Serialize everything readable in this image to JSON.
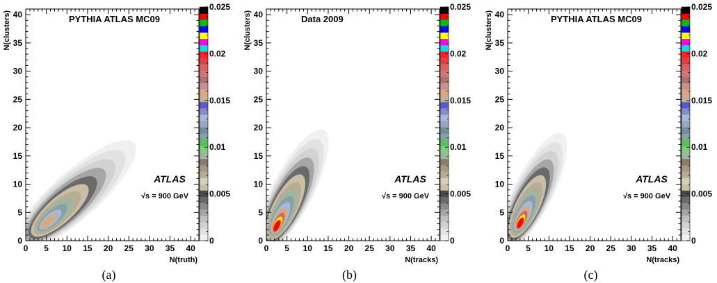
{
  "chart_data": [
    {
      "type": "heatmap",
      "panel_label": "(a)",
      "title": "PYTHIA ATLAS MC09",
      "xlabel": "N(truth)",
      "ylabel": "N(clusters)",
      "xlim": [
        0,
        42
      ],
      "ylim": [
        0,
        41
      ],
      "x_ticks": [
        0,
        5,
        10,
        15,
        20,
        25,
        30,
        35,
        40
      ],
      "y_ticks": [
        0,
        5,
        10,
        15,
        20,
        25,
        30,
        35,
        40
      ],
      "annotation": {
        "experiment": "ATLAS",
        "energy": "√s = 900 GeV"
      },
      "colorbar": {
        "range": [
          0,
          0.025
        ],
        "ticks": [
          0,
          0.005,
          0.01,
          0.015,
          0.02,
          0.025
        ]
      },
      "peak": {
        "x": 5,
        "y": 3,
        "value": 0.0165
      },
      "ridge": {
        "start": [
          1.5,
          1.5
        ],
        "end": [
          30,
          20
        ]
      },
      "contour_levels": [
        0.0003,
        0.0008,
        0.0015,
        0.0025,
        0.004,
        0.0055,
        0.007,
        0.009,
        0.011,
        0.013,
        0.015,
        0.016
      ]
    },
    {
      "type": "heatmap",
      "panel_label": "(b)",
      "title": "Data 2009",
      "xlabel": "N(tracks)",
      "ylabel": "N(clusters)",
      "xlim": [
        0,
        42
      ],
      "ylim": [
        0,
        41
      ],
      "x_ticks": [
        0,
        5,
        10,
        15,
        20,
        25,
        30,
        35,
        40
      ],
      "y_ticks": [
        0,
        5,
        10,
        15,
        20,
        25,
        30,
        35,
        40
      ],
      "annotation": {
        "experiment": "ATLAS",
        "energy": "√s = 900 GeV"
      },
      "colorbar": {
        "range": [
          0,
          0.025
        ],
        "ticks": [
          0,
          0.005,
          0.01,
          0.015,
          0.02,
          0.025
        ]
      },
      "peak": {
        "x": 2.5,
        "y": 2.5,
        "value": 0.025
      },
      "ridge": {
        "start": [
          1,
          1.5
        ],
        "end": [
          16,
          23
        ]
      },
      "contour_levels": [
        0.0003,
        0.0008,
        0.0015,
        0.0025,
        0.004,
        0.0055,
        0.007,
        0.009,
        0.011,
        0.013,
        0.016,
        0.019,
        0.022,
        0.024
      ]
    },
    {
      "type": "heatmap",
      "panel_label": "(c)",
      "title": "PYTHIA ATLAS MC09",
      "xlabel": "N(tracks)",
      "ylabel": "N(clusters)",
      "xlim": [
        0,
        42
      ],
      "ylim": [
        0,
        41
      ],
      "x_ticks": [
        0,
        5,
        10,
        15,
        20,
        25,
        30,
        35,
        40
      ],
      "y_ticks": [
        0,
        5,
        10,
        15,
        20,
        25,
        30,
        35,
        40
      ],
      "annotation": {
        "experiment": "ATLAS",
        "energy": "√s = 900 GeV"
      },
      "colorbar": {
        "range": [
          0,
          0.025
        ],
        "ticks": [
          0,
          0.005,
          0.01,
          0.015,
          0.02,
          0.025
        ]
      },
      "peak": {
        "x": 3,
        "y": 3,
        "value": 0.024
      },
      "ridge": {
        "start": [
          1,
          1.5
        ],
        "end": [
          15,
          22
        ]
      },
      "contour_levels": [
        0.0003,
        0.0008,
        0.0015,
        0.0025,
        0.004,
        0.0055,
        0.007,
        0.009,
        0.011,
        0.013,
        0.016,
        0.019,
        0.022,
        0.024
      ]
    }
  ],
  "palette": [
    "#f0f0f0",
    "#e2e2e2",
    "#d2d2d2",
    "#c0c0c0",
    "#a6a6a6",
    "#8a8a8a",
    "#6a6a6a",
    "#4a4a4a",
    "#c9bfa8",
    "#d6cfb6",
    "#b8ad92",
    "#a59a86",
    "#8c7a6c",
    "#9eb59e",
    "#7ccf7c",
    "#55c455",
    "#8aa0a8",
    "#6f8f99",
    "#98a8c0",
    "#a8b8d8",
    "#8a8ad0",
    "#5a5ad0",
    "#c8b090",
    "#d8a880",
    "#c89090",
    "#b07070",
    "#d07878",
    "#e06060",
    "#e04040",
    "#ff2020",
    "#00e0e0",
    "#ff00ff",
    "#ffff00",
    "#0000ff",
    "#00c000",
    "#ff0000",
    "#000000"
  ]
}
